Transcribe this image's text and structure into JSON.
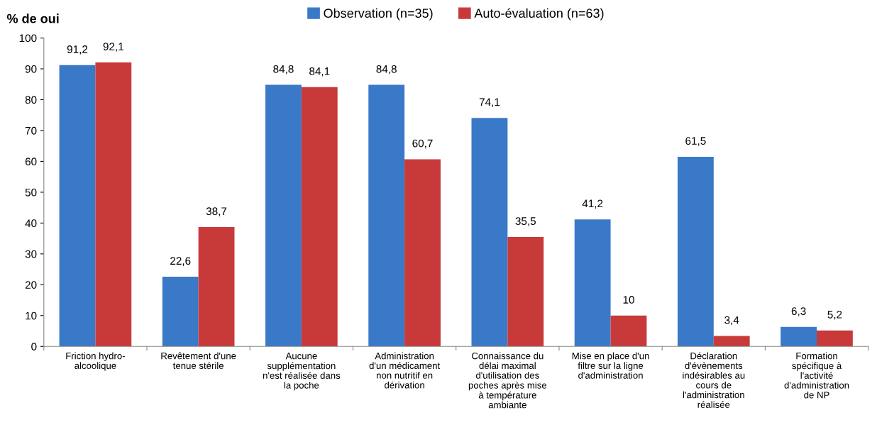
{
  "chart_data": {
    "type": "bar",
    "ylabel": "% de oui",
    "categories": [
      "Friction hydro-\nalcoolique",
      "Revêtement d'une\ntenue stérile",
      "Aucune\nsupplémentation\nn'est réalisée dans\nla poche",
      "Administration\nd'un médicament\nnon nutritif en\ndérivation",
      "Connaissance du\ndélai maximal\nd'utilisation des\npoches après mise\nà température\nambiante",
      "Mise en place d'un\nfiltre sur la ligne\nd'administration",
      "Déclaration\nd'évènements\nindésirables au\ncours de\nl'administration\nréalisée",
      "Formation\nspécifique à\nl'activité\nd'administration\nde NP"
    ],
    "series": [
      {
        "name": "Observation (n=35)",
        "color": "#3a78c8",
        "values": [
          91.2,
          22.6,
          84.8,
          84.8,
          74.1,
          41.2,
          61.5,
          6.3
        ],
        "value_labels": [
          "91,2",
          "22,6",
          "84,8",
          "84,8",
          "74,1",
          "41,2",
          "61,5",
          "6,3"
        ]
      },
      {
        "name": "Auto-évaluation (n=63)",
        "color": "#c83a3a",
        "values": [
          92.1,
          38.7,
          84.1,
          60.7,
          35.5,
          10,
          3.4,
          5.2
        ],
        "value_labels": [
          "92,1",
          "38,7",
          "84,1",
          "60,7",
          "35,5",
          "10",
          "3,4",
          "5,2"
        ]
      }
    ],
    "ylim": [
      0,
      100
    ],
    "yticks": [
      0,
      10,
      20,
      30,
      40,
      50,
      60,
      70,
      80,
      90,
      100
    ],
    "grid": false,
    "legend": "top"
  }
}
